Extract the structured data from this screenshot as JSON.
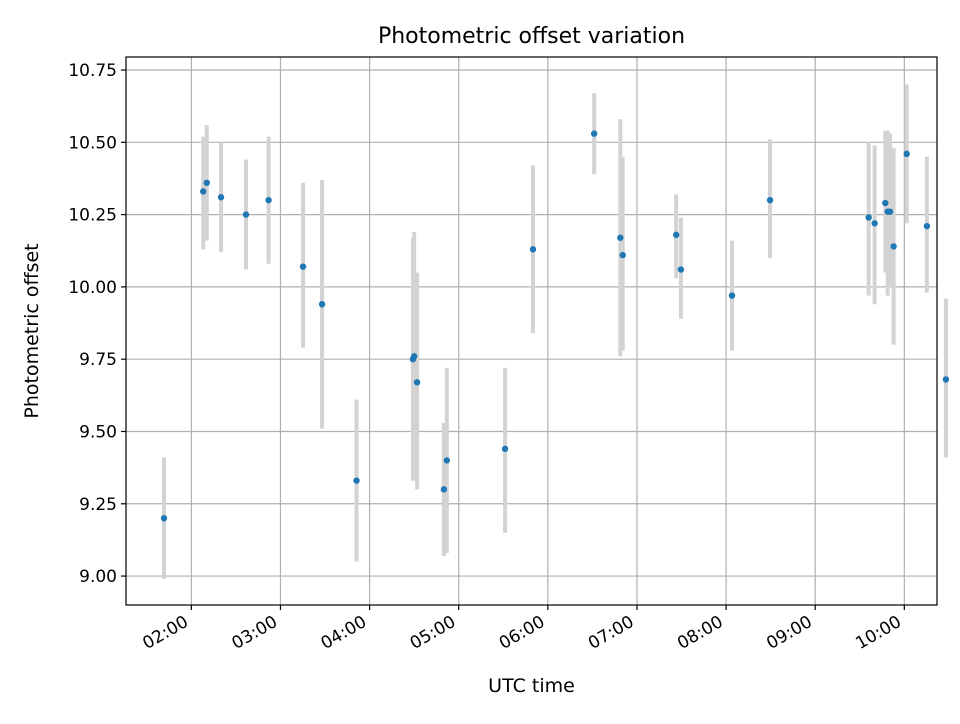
{
  "chart_data": {
    "type": "scatter",
    "title": "Photometric offset variation",
    "xlabel": "UTC time",
    "ylabel": "Photometric offset",
    "x_unit": "hours (UTC, time of day)",
    "xlim": [
      1.2667,
      10.3667
    ],
    "ylim": [
      8.9,
      10.795
    ],
    "x_ticks": [
      {
        "value": 2,
        "label": "02:00"
      },
      {
        "value": 3,
        "label": "03:00"
      },
      {
        "value": 4,
        "label": "04:00"
      },
      {
        "value": 5,
        "label": "05:00"
      },
      {
        "value": 6,
        "label": "06:00"
      },
      {
        "value": 7,
        "label": "07:00"
      },
      {
        "value": 8,
        "label": "08:00"
      },
      {
        "value": 9,
        "label": "09:00"
      },
      {
        "value": 10,
        "label": "10:00"
      }
    ],
    "y_ticks": [
      {
        "value": 9.0,
        "label": "9.00"
      },
      {
        "value": 9.25,
        "label": "9.25"
      },
      {
        "value": 9.5,
        "label": "9.50"
      },
      {
        "value": 9.75,
        "label": "9.75"
      },
      {
        "value": 10.0,
        "label": "10.00"
      },
      {
        "value": 10.25,
        "label": "10.25"
      },
      {
        "value": 10.5,
        "label": "10.50"
      },
      {
        "value": 10.75,
        "label": "10.75"
      }
    ],
    "grid": true,
    "legend": "none",
    "point_color": "#1f77b4",
    "errorbar_color": "#d3d3d3",
    "points": [
      {
        "x": 1.6933,
        "y": 9.2,
        "err_low": 8.99,
        "err_high": 9.41
      },
      {
        "x": 2.1333,
        "y": 10.33,
        "err_low": 10.13,
        "err_high": 10.52
      },
      {
        "x": 2.1733,
        "y": 10.36,
        "err_low": 10.16,
        "err_high": 10.56
      },
      {
        "x": 2.3333,
        "y": 10.31,
        "err_low": 10.12,
        "err_high": 10.5
      },
      {
        "x": 2.6133,
        "y": 10.25,
        "err_low": 10.06,
        "err_high": 10.44
      },
      {
        "x": 2.8667,
        "y": 10.3,
        "err_low": 10.08,
        "err_high": 10.52
      },
      {
        "x": 3.2533,
        "y": 10.07,
        "err_low": 9.79,
        "err_high": 10.36
      },
      {
        "x": 3.4667,
        "y": 9.94,
        "err_low": 9.51,
        "err_high": 10.37
      },
      {
        "x": 3.8533,
        "y": 9.33,
        "err_low": 9.05,
        "err_high": 9.61
      },
      {
        "x": 4.4867,
        "y": 9.75,
        "err_low": 9.33,
        "err_high": 10.17
      },
      {
        "x": 4.5,
        "y": 9.76,
        "err_low": 9.33,
        "err_high": 10.19
      },
      {
        "x": 4.5333,
        "y": 9.67,
        "err_low": 9.3,
        "err_high": 10.05
      },
      {
        "x": 4.8333,
        "y": 9.3,
        "err_low": 9.07,
        "err_high": 9.53
      },
      {
        "x": 4.8667,
        "y": 9.4,
        "err_low": 9.08,
        "err_high": 9.72
      },
      {
        "x": 5.52,
        "y": 9.44,
        "err_low": 9.15,
        "err_high": 9.72
      },
      {
        "x": 5.8333,
        "y": 10.13,
        "err_low": 9.84,
        "err_high": 10.42
      },
      {
        "x": 6.52,
        "y": 10.53,
        "err_low": 10.39,
        "err_high": 10.67
      },
      {
        "x": 6.8133,
        "y": 10.17,
        "err_low": 9.76,
        "err_high": 10.58
      },
      {
        "x": 6.84,
        "y": 10.11,
        "err_low": 9.78,
        "err_high": 10.45
      },
      {
        "x": 7.44,
        "y": 10.18,
        "err_low": 10.03,
        "err_high": 10.32
      },
      {
        "x": 7.4933,
        "y": 10.06,
        "err_low": 9.89,
        "err_high": 10.24
      },
      {
        "x": 8.0667,
        "y": 9.97,
        "err_low": 9.78,
        "err_high": 10.16
      },
      {
        "x": 8.4933,
        "y": 10.3,
        "err_low": 10.1,
        "err_high": 10.51
      },
      {
        "x": 9.6,
        "y": 10.24,
        "err_low": 9.97,
        "err_high": 10.5
      },
      {
        "x": 9.6667,
        "y": 10.22,
        "err_low": 9.94,
        "err_high": 10.49
      },
      {
        "x": 9.7867,
        "y": 10.29,
        "err_low": 10.05,
        "err_high": 10.54
      },
      {
        "x": 9.8133,
        "y": 10.26,
        "err_low": 9.97,
        "err_high": 10.54
      },
      {
        "x": 9.84,
        "y": 10.26,
        "err_low": 10.0,
        "err_high": 10.53
      },
      {
        "x": 9.88,
        "y": 10.14,
        "err_low": 9.8,
        "err_high": 10.48
      },
      {
        "x": 10.0267,
        "y": 10.46,
        "err_low": 10.22,
        "err_high": 10.7
      },
      {
        "x": 10.2533,
        "y": 10.21,
        "err_low": 9.98,
        "err_high": 10.45
      },
      {
        "x": 10.4667,
        "y": 9.68,
        "err_low": 9.41,
        "err_high": 9.96
      }
    ]
  }
}
